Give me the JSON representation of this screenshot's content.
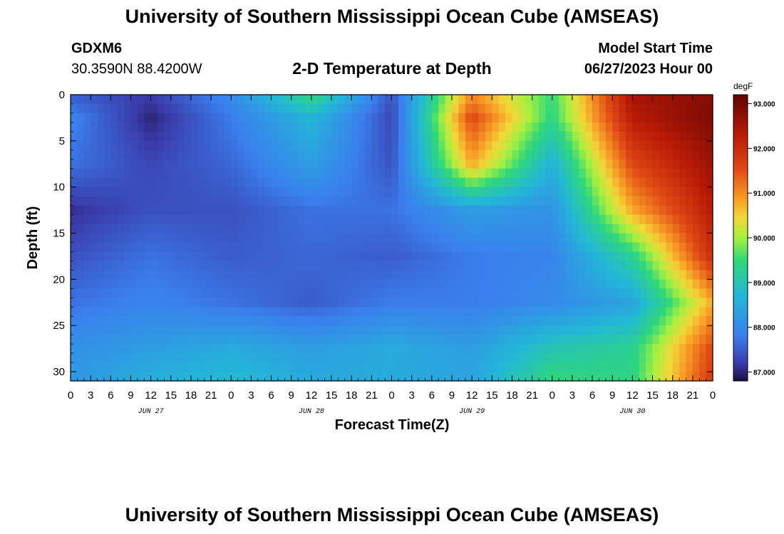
{
  "header": {
    "title": "University of Southern Mississippi Ocean Cube (AMSEAS)",
    "station": "GDXM6",
    "coords": "30.3590N  88.4200W",
    "plot_title": "2-D Temperature at Depth",
    "model_start_label": "Model Start Time",
    "model_start_value": "06/27/2023 Hour 00",
    "footer_title": "University of Southern Mississippi Ocean Cube (AMSEAS)"
  },
  "chart_data": {
    "type": "heatmap",
    "title": "2-D Temperature at Depth",
    "xlabel": "Forecast Time(Z)",
    "ylabel": "Depth (ft)",
    "x_tick_labels": [
      "0",
      "3",
      "6",
      "9",
      "12",
      "15",
      "18",
      "21",
      "0",
      "3",
      "6",
      "9",
      "12",
      "15",
      "18",
      "21",
      "0",
      "3",
      "6",
      "9",
      "12",
      "15",
      "18",
      "21",
      "0",
      "3",
      "6",
      "9",
      "12",
      "15",
      "18",
      "21",
      "0"
    ],
    "x_dates": [
      "JUN 27",
      "JUN 28",
      "JUN 29",
      "JUN 30"
    ],
    "x_hours_range": [
      0,
      96
    ],
    "y_ticks": [
      0,
      5,
      10,
      15,
      20,
      25,
      30
    ],
    "y_tick_labels": [
      "0",
      "5",
      "10",
      "15",
      "20",
      "25",
      "30"
    ],
    "ylim": [
      0,
      31
    ],
    "y_inverted": true,
    "colorbar": {
      "unit": "degF",
      "tick_labels": [
        "93.000",
        "92.000",
        "91.000",
        "90.000",
        "89.000",
        "88.000",
        "87.000"
      ],
      "range": [
        86.8,
        93.2
      ]
    },
    "grid_hours": [
      0,
      12,
      24,
      36,
      48,
      60,
      72,
      84,
      96
    ],
    "grid_depths": [
      0,
      2.5,
      7.5,
      12.5,
      17.5,
      22.5,
      27.5,
      31
    ],
    "values": [
      [
        87.5,
        87.2,
        88.0,
        89.5,
        87.4,
        91.0,
        89.5,
        92.5,
        92.8
      ],
      [
        87.9,
        87.0,
        87.8,
        88.7,
        87.3,
        91.6,
        89.4,
        92.3,
        92.9
      ],
      [
        87.7,
        87.3,
        87.6,
        88.3,
        87.4,
        90.8,
        88.6,
        91.6,
        92.6
      ],
      [
        87.1,
        87.4,
        87.4,
        87.7,
        87.7,
        88.3,
        88.1,
        90.8,
        92.3
      ],
      [
        87.4,
        87.7,
        87.5,
        87.6,
        87.5,
        87.8,
        87.9,
        89.3,
        92.0
      ],
      [
        87.7,
        87.9,
        87.7,
        87.5,
        87.8,
        87.8,
        88.0,
        88.4,
        90.8
      ],
      [
        88.1,
        88.3,
        88.5,
        88.3,
        88.5,
        88.3,
        89.0,
        89.3,
        91.6
      ],
      [
        88.2,
        88.6,
        88.8,
        88.5,
        88.5,
        88.4,
        89.5,
        89.4,
        91.8
      ]
    ]
  }
}
